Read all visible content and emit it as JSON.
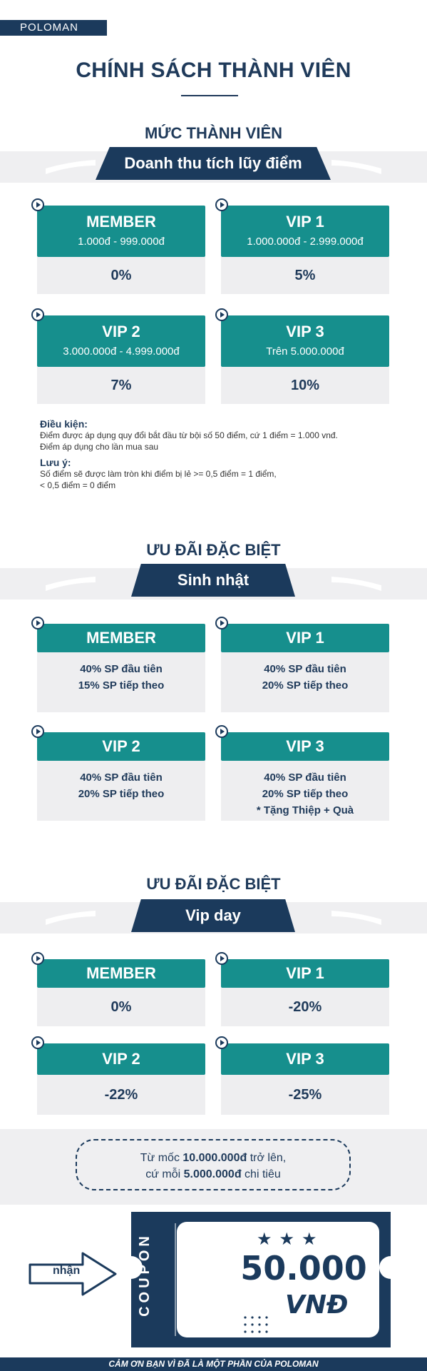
{
  "brand": "POLOMAN",
  "title": "CHÍNH SÁCH THÀNH VIÊN",
  "levels": {
    "heading": "MỨC THÀNH VIÊN",
    "ribbon": "Doanh thu tích lũy điểm",
    "cards": [
      {
        "name": "MEMBER",
        "range": "1.000đ - 999.000đ",
        "pct": "0%"
      },
      {
        "name": "VIP 1",
        "range": "1.000.000đ - 2.999.000đ",
        "pct": "5%"
      },
      {
        "name": "VIP 2",
        "range": "3.000.000đ - 4.999.000đ",
        "pct": "7%"
      },
      {
        "name": "VIP 3",
        "range": "Trên 5.000.000đ",
        "pct": "10%"
      }
    ]
  },
  "notes": {
    "cond_title": "Điều kiện:",
    "cond_1": "Điểm được áp dụng quy đổi bắt đầu từ bội số 50 điểm, cứ 1 điểm = 1.000 vnđ.",
    "cond_2": "Điểm áp dụng cho lần mua sau",
    "note_title": "Lưu ý:",
    "note_1": "Số điểm sẽ được làm tròn khi điểm bị lẻ >= 0,5 điểm = 1 điểm,",
    "note_2": "< 0,5 điểm = 0 điểm"
  },
  "birthday": {
    "heading": "ƯU ĐÃI ĐẶC BIỆT",
    "ribbon": "Sinh nhật",
    "cards": [
      {
        "name": "MEMBER",
        "l1": "40% SP đầu tiên",
        "l2": "15% SP tiếp theo",
        "l3": ""
      },
      {
        "name": "VIP 1",
        "l1": "40% SP đầu tiên",
        "l2": "20% SP tiếp theo",
        "l3": ""
      },
      {
        "name": "VIP 2",
        "l1": "40% SP đầu tiên",
        "l2": "20% SP tiếp theo",
        "l3": ""
      },
      {
        "name": "VIP 3",
        "l1": "40% SP đầu tiên",
        "l2": "20% SP tiếp theo",
        "l3": "* Tặng Thiệp + Quà"
      }
    ]
  },
  "vipday": {
    "heading": "ƯU ĐÃI ĐẶC BIỆT",
    "ribbon": "Vip day",
    "cards": [
      {
        "name": "MEMBER",
        "pct": "0%"
      },
      {
        "name": "VIP 1",
        "pct": "-20%"
      },
      {
        "name": "VIP 2",
        "pct": "-22%"
      },
      {
        "name": "VIP 3",
        "pct": "-25%"
      }
    ]
  },
  "offer": {
    "pre1": "Từ mốc ",
    "amount1": "10.000.000đ",
    "post1": " trở lên,",
    "pre2": "cứ mỗi ",
    "amount2": "5.000.000đ",
    "post2": " chi tiêu"
  },
  "coupon": {
    "arrow_label": "nhận",
    "side_label": "COUPON",
    "amount": "50.000",
    "currency": "VNĐ"
  },
  "footer": "CẢM ƠN BẠN VÌ ĐÃ LÀ MỘT PHẦN CỦA POLOMAN",
  "colors": {
    "navy": "#1b3a5c",
    "teal": "#168f8d",
    "panel": "#eeeef0"
  },
  "icons": [
    "play-icon",
    "star-icon",
    "arrow-right-icon"
  ]
}
